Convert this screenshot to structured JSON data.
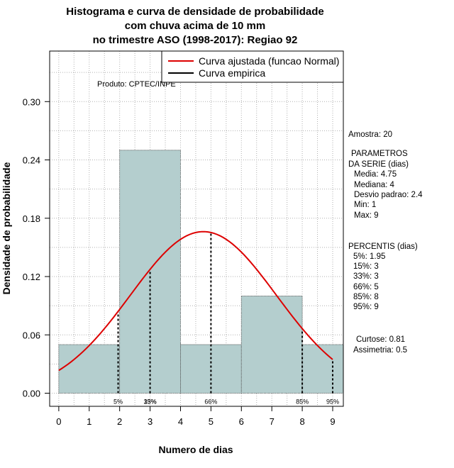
{
  "chart_data": {
    "type": "bar",
    "title_lines": [
      "Histograma e curva de densidade de probabilidade",
      "com chuva acima de 10 mm",
      "no trimestre ASO (1998-2017): Regiao 92"
    ],
    "xlabel": "Numero de dias",
    "ylabel": "Densidade de probabilidade",
    "xlim": [
      -0.3,
      9.35
    ],
    "ylim": [
      -0.0135,
      0.352
    ],
    "x_ticks": [
      0,
      1,
      2,
      3,
      4,
      5,
      6,
      7,
      8,
      9
    ],
    "y_ticks": [
      0.0,
      0.06,
      0.12,
      0.18,
      0.24,
      0.3
    ],
    "y_tick_labels": [
      "0.00",
      "0.06",
      "0.12",
      "0.18",
      "0.24",
      "0.30"
    ],
    "bars": [
      {
        "x0": 0,
        "x1": 2,
        "density": 0.05
      },
      {
        "x0": 2,
        "x1": 4,
        "density": 0.25
      },
      {
        "x0": 4,
        "x1": 6,
        "density": 0.05
      },
      {
        "x0": 6,
        "x1": 8,
        "density": 0.1
      },
      {
        "x0": 8,
        "x1": 9.4,
        "density": 0.05
      }
    ],
    "normal_curve": {
      "mean": 4.75,
      "sd": 2.4,
      "x_from": 0,
      "x_to": 9,
      "color": "#dd0000"
    },
    "percentile_lines": [
      {
        "label": "5%",
        "x": 1.95
      },
      {
        "label": "33%",
        "x": 3
      },
      {
        "label": "66%",
        "x": 5
      },
      {
        "label": "85%",
        "x": 8
      },
      {
        "label": "95%",
        "x": 9
      }
    ],
    "percentile_label_overlay": "15%",
    "legend": {
      "position": "top-right",
      "entries": [
        {
          "label": "Curva ajustada (funcao Normal)",
          "color": "#dd0000"
        },
        {
          "label": "Curva empirica",
          "color": "#000000"
        }
      ]
    },
    "bar_color": "#b4cece",
    "credit": "Produto: CPTEC/INPE"
  },
  "stats_panel": {
    "amostra": "Amostra: 20",
    "param_header_1": "PARAMETROS",
    "param_header_2": "DA SERIE (dias)",
    "media": "Media: 4.75",
    "mediana": "Mediana: 4",
    "desvio": "Desvio padrao: 2.4",
    "min": "Min: 1",
    "max": "Max: 9",
    "percentis_header": "PERCENTIS (dias)",
    "p5": "5%: 1.95",
    "p15": "15%: 3",
    "p33": "33%: 3",
    "p66": "66%: 5",
    "p85": "85%: 8",
    "p95": "95%: 9",
    "curtose": "Curtose: 0.81",
    "assimetria": "Assimetria: 0.5"
  }
}
